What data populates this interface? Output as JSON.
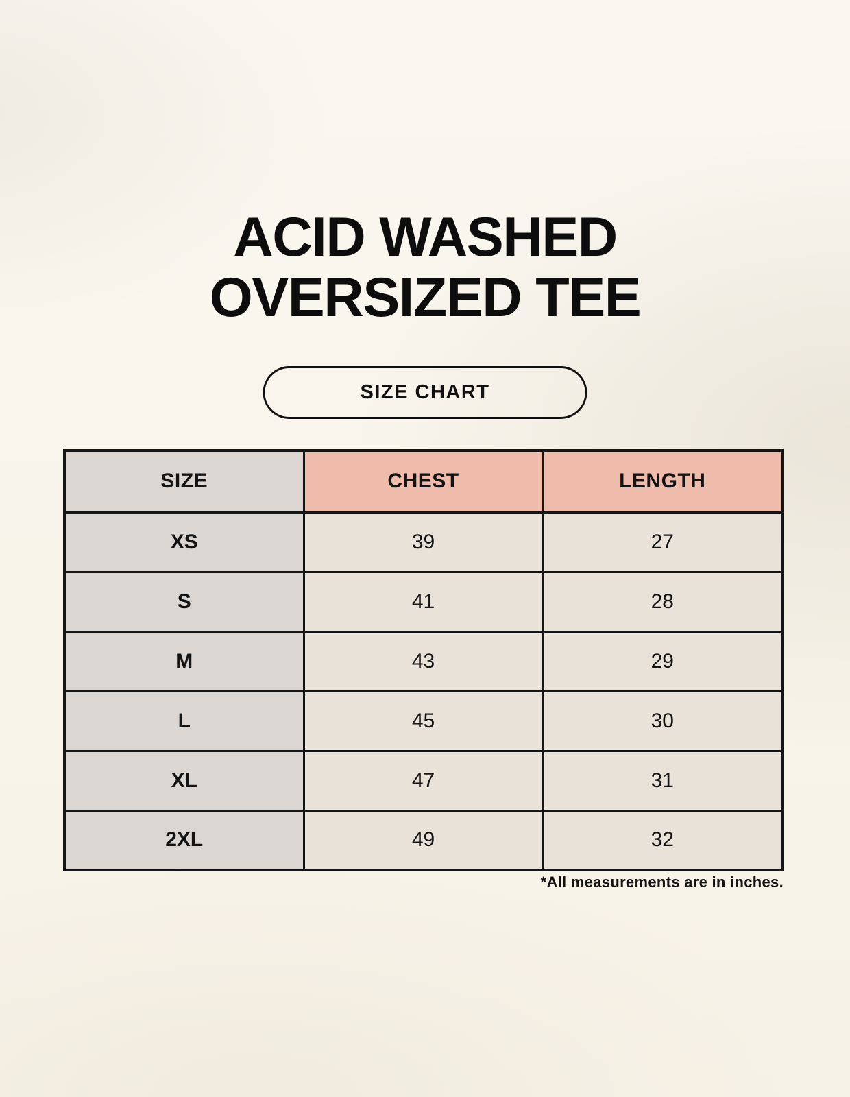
{
  "title": {
    "line1": "ACID WASHED",
    "line2": "OVERSIZED TEE"
  },
  "size_chart_button": {
    "label": "SIZE CHART"
  },
  "footnote": "*All measurements are in inches.",
  "chart_data": {
    "type": "table",
    "title": "ACID WASHED OVERSIZED TEE - SIZE CHART",
    "columns": [
      "SIZE",
      "CHEST",
      "LENGTH"
    ],
    "rows": [
      {
        "size": "XS",
        "chest": "39",
        "length": "27"
      },
      {
        "size": "S",
        "chest": "41",
        "length": "28"
      },
      {
        "size": "M",
        "chest": "43",
        "length": "29"
      },
      {
        "size": "L",
        "chest": "45",
        "length": "30"
      },
      {
        "size": "XL",
        "chest": "47",
        "length": "31"
      },
      {
        "size": "2XL",
        "chest": "49",
        "length": "32"
      }
    ]
  },
  "colors": {
    "background": "#f8f4eb",
    "size_column_bg": "#dcd6d2",
    "measure_header_bg": "#efbcac",
    "data_cell_bg": "#e9e2d8",
    "border": "#151515",
    "text": "#111111"
  }
}
